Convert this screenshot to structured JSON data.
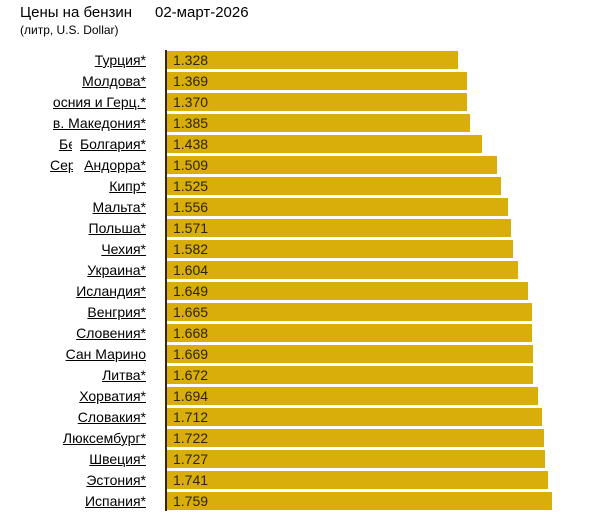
{
  "header": {
    "title": "Цены на бензин",
    "date": "02-март-2026",
    "subtitle": "(литр, U.S. Dollar)"
  },
  "chart_data": {
    "type": "bar",
    "orientation": "horizontal",
    "title": "Цены на бензин 02-март-2026",
    "subtitle": "(литр, U.S. Dollar)",
    "xlabel": "",
    "ylabel": "",
    "xlim": [
      0,
      1.759
    ],
    "grid": false,
    "legend": false,
    "sort": "ascending",
    "categories": [
      "Турция*",
      "Молдова*",
      "Босния и Герц.*",
      "Сев. Македония*",
      "Болгария*",
      "Андорра*",
      "Кипр*",
      "Мальта*",
      "Польша*",
      "Чехия*",
      "Украина*",
      "Исландия*",
      "Венгрия*",
      "Словения*",
      "Сан Марино ",
      "Литва*",
      "Хорватия*",
      "Словакия*",
      "Люксембург*",
      "Швеция*",
      "Эстония*",
      "Испания*"
    ],
    "values": [
      1.328,
      1.369,
      1.37,
      1.385,
      1.438,
      1.509,
      1.525,
      1.556,
      1.571,
      1.582,
      1.604,
      1.649,
      1.665,
      1.668,
      1.669,
      1.672,
      1.694,
      1.712,
      1.722,
      1.727,
      1.741,
      1.759
    ],
    "value_decimals": 3,
    "clipped_label_fragments": [
      {
        "text": "Бе",
        "row_index": 4
      },
      {
        "text": "Сер",
        "row_index": 5
      }
    ],
    "colors": {
      "bar_fill": "#D9AE0A",
      "axis_line": "#33290A",
      "value_text": "#2E2500",
      "label_text": "#000000",
      "background": "#FFFFFF"
    }
  }
}
